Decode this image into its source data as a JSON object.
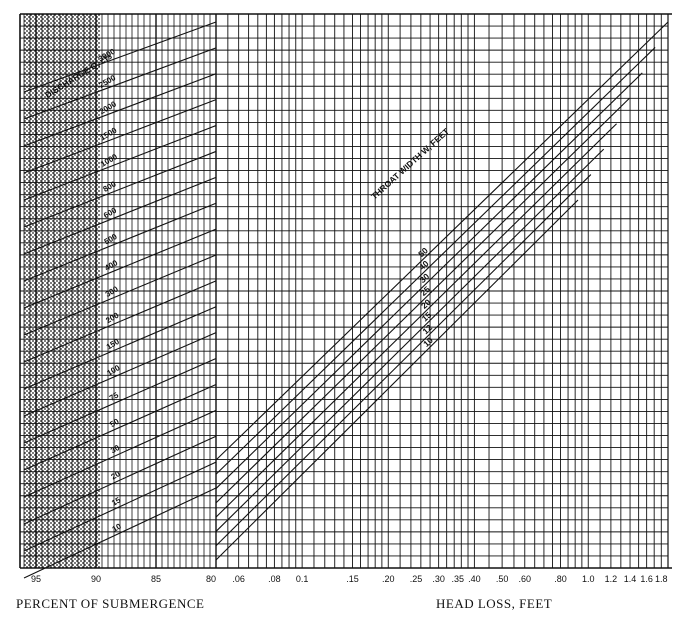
{
  "chart_data": {
    "type": "line",
    "description_free": true,
    "x_left_label": "PERCENT OF SUBMERGENCE",
    "x_right_label": "HEAD LOSS, FEET",
    "submergence_ticks": [
      "95",
      "90",
      "85",
      "80"
    ],
    "head_loss_ticks": [
      ".06",
      ".08",
      "0.1",
      ".15",
      ".20",
      ".25",
      ".30",
      ".35",
      ".40",
      ".50",
      ".60",
      ".80",
      "1.0",
      "1.2",
      "1.4",
      "1.6",
      "1.8"
    ],
    "discharge_title": "DISCHARGE Q, cfs",
    "discharge_values": [
      "3000",
      "2500",
      "2000",
      "1500",
      "1000",
      "800",
      "600",
      "500",
      "400",
      "300",
      "200",
      "150",
      "100",
      "75",
      "50",
      "30",
      "20",
      "15",
      "10"
    ],
    "throat_title": "THROAT WIDTH W, FEET",
    "throat_values": [
      "50",
      "40",
      "30",
      "25",
      "20",
      "15",
      "12",
      "10"
    ],
    "colors": {
      "ink": "#111111",
      "paper": "#ffffff",
      "shade": "#7a7a7a"
    }
  }
}
